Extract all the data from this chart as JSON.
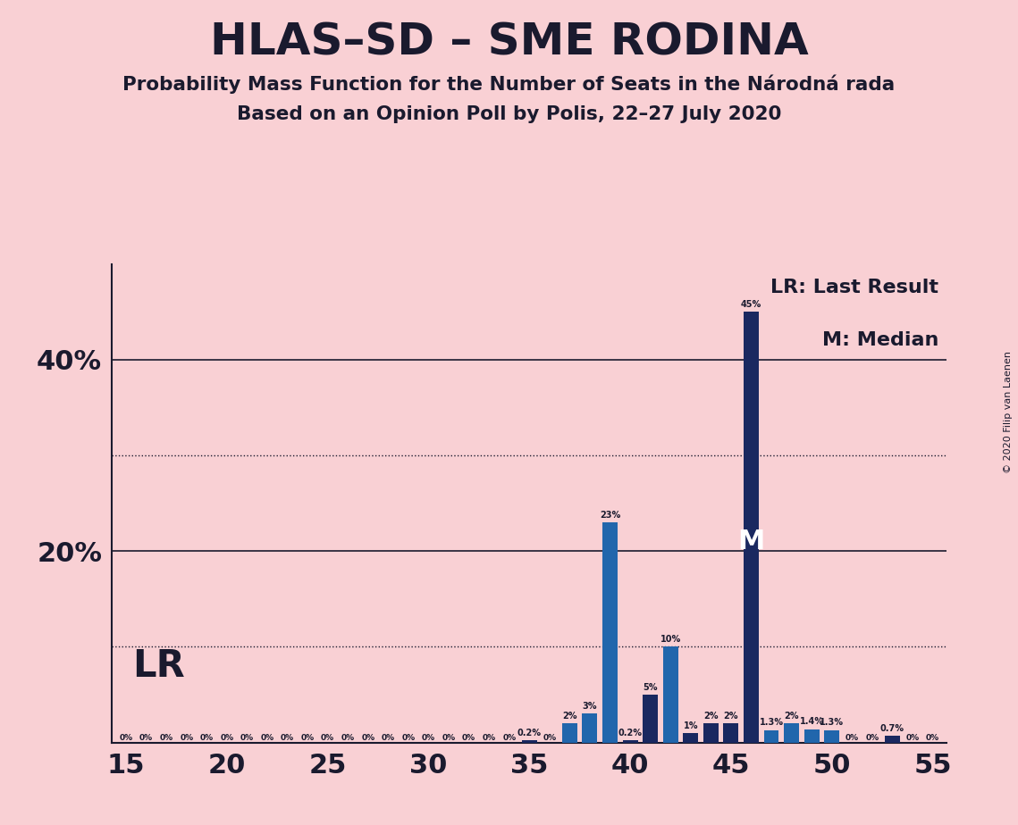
{
  "title": "HLAS–SD – SME RODINA",
  "subtitle1": "Probability Mass Function for the Number of Seats in the Národná rada",
  "subtitle2": "Based on an Opinion Poll by Polis, 22–27 July 2020",
  "copyright": "© 2020 Filip van Laenen",
  "background_color": "#f9d0d4",
  "bar_color_light": "#2166ac",
  "bar_color_dark": "#1a2860",
  "text_color": "#1a1a2e",
  "x_min": 15,
  "x_max": 55,
  "y_min": 0,
  "y_max": 50,
  "solid_lines": [
    20,
    40
  ],
  "dotted_lines": [
    10,
    30
  ],
  "lr_seat": 46,
  "median_seat": 46,
  "seats": [
    15,
    16,
    17,
    18,
    19,
    20,
    21,
    22,
    23,
    24,
    25,
    26,
    27,
    28,
    29,
    30,
    31,
    32,
    33,
    34,
    35,
    36,
    37,
    38,
    39,
    40,
    41,
    42,
    43,
    44,
    45,
    46,
    47,
    48,
    49,
    50,
    51,
    52,
    53,
    54,
    55
  ],
  "values": [
    0,
    0,
    0,
    0,
    0,
    0,
    0,
    0,
    0,
    0,
    0,
    0,
    0,
    0,
    0,
    0,
    0,
    0,
    0,
    0,
    0.2,
    0,
    2,
    3,
    23,
    0.2,
    5,
    10,
    1.0,
    2,
    2,
    45,
    1.3,
    2,
    1.4,
    1.3,
    0,
    0,
    0.7,
    0,
    0
  ],
  "bar_colors": [
    "dark",
    "dark",
    "dark",
    "dark",
    "dark",
    "dark",
    "dark",
    "dark",
    "dark",
    "dark",
    "dark",
    "dark",
    "dark",
    "dark",
    "dark",
    "dark",
    "dark",
    "dark",
    "dark",
    "dark",
    "dark",
    "dark",
    "light",
    "light",
    "light",
    "dark",
    "dark",
    "light",
    "dark",
    "dark",
    "dark",
    "dark",
    "light",
    "light",
    "light",
    "light",
    "dark",
    "dark",
    "dark",
    "dark",
    "dark"
  ],
  "legend_lr_label": "LR: Last Result",
  "legend_m_label": "M: Median"
}
